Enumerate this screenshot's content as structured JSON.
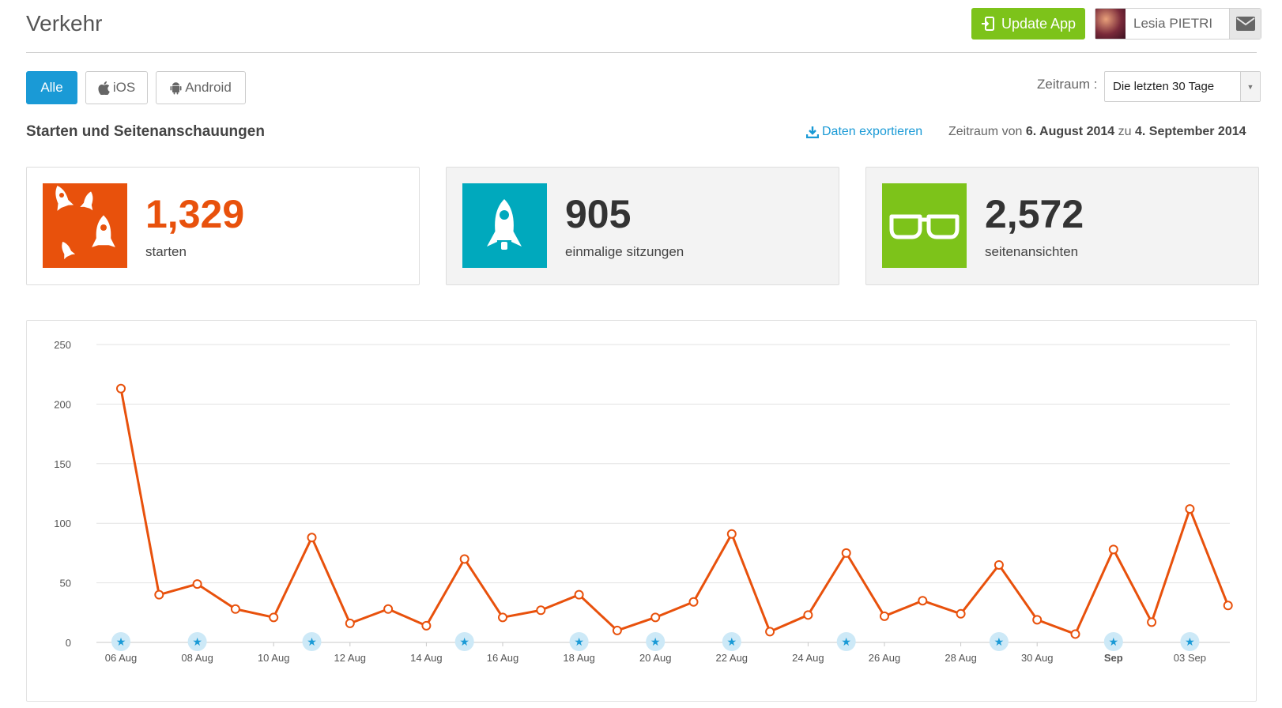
{
  "header": {
    "title": "Verkehr",
    "update_label": "Update App",
    "user_name": "Lesia PIETRI"
  },
  "filters": {
    "tabs": [
      {
        "label": "Alle",
        "icon": "none"
      },
      {
        "label": "iOS",
        "icon": "apple-icon"
      },
      {
        "label": "Android",
        "icon": "android-icon"
      }
    ],
    "active_tab": "Alle",
    "period_label": "Zeitraum :",
    "period_value": "Die letzten 30 Tage"
  },
  "section": {
    "title": "Starten und Seitenanschauungen",
    "export_label": "Daten exportieren",
    "period_prefix": "Zeitraum von",
    "period_start": "6. August 2014",
    "period_connector": "zu",
    "period_end": "4. September 2014"
  },
  "stats": [
    {
      "value": "1,329",
      "label": "starten",
      "color": "#e8510c",
      "icon": "rockets-icon"
    },
    {
      "value": "905",
      "label": "einmalige sitzungen",
      "color": "#00a9bd",
      "icon": "rocket-icon"
    },
    {
      "value": "2,572",
      "label": "seitenansichten",
      "color": "#7dc31a",
      "icon": "glasses-icon"
    }
  ],
  "colors": {
    "accent_blue": "#1a9ad6",
    "update_green": "#7dc31a",
    "line_orange": "#e8510c",
    "marker_blue": "#cde9f7"
  },
  "chart_data": {
    "type": "line",
    "ylim": [
      0,
      250
    ],
    "yticks": [
      0,
      50,
      100,
      150,
      200,
      250
    ],
    "grid": true,
    "x_labels": [
      {
        "i": 0,
        "label": "06 Aug"
      },
      {
        "i": 2,
        "label": "08 Aug"
      },
      {
        "i": 4,
        "label": "10 Aug"
      },
      {
        "i": 6,
        "label": "12 Aug"
      },
      {
        "i": 8,
        "label": "14 Aug"
      },
      {
        "i": 10,
        "label": "16 Aug"
      },
      {
        "i": 12,
        "label": "18 Aug"
      },
      {
        "i": 14,
        "label": "20 Aug"
      },
      {
        "i": 16,
        "label": "22 Aug"
      },
      {
        "i": 18,
        "label": "24 Aug"
      },
      {
        "i": 20,
        "label": "26 Aug"
      },
      {
        "i": 22,
        "label": "28 Aug"
      },
      {
        "i": 24,
        "label": "30 Aug"
      },
      {
        "i": 26,
        "label": "Sep",
        "bold": true
      },
      {
        "i": 28,
        "label": "03 Sep"
      }
    ],
    "series": [
      {
        "values": [
          213,
          40,
          49,
          28,
          21,
          88,
          16,
          28,
          14,
          70,
          21,
          27,
          40,
          10,
          21,
          34,
          91,
          9,
          23,
          75,
          22,
          35,
          24,
          65,
          19,
          7,
          78,
          17,
          112,
          31
        ]
      }
    ],
    "star_markers": [
      0,
      2,
      5,
      9,
      12,
      14,
      16,
      19,
      23,
      26,
      28
    ]
  }
}
